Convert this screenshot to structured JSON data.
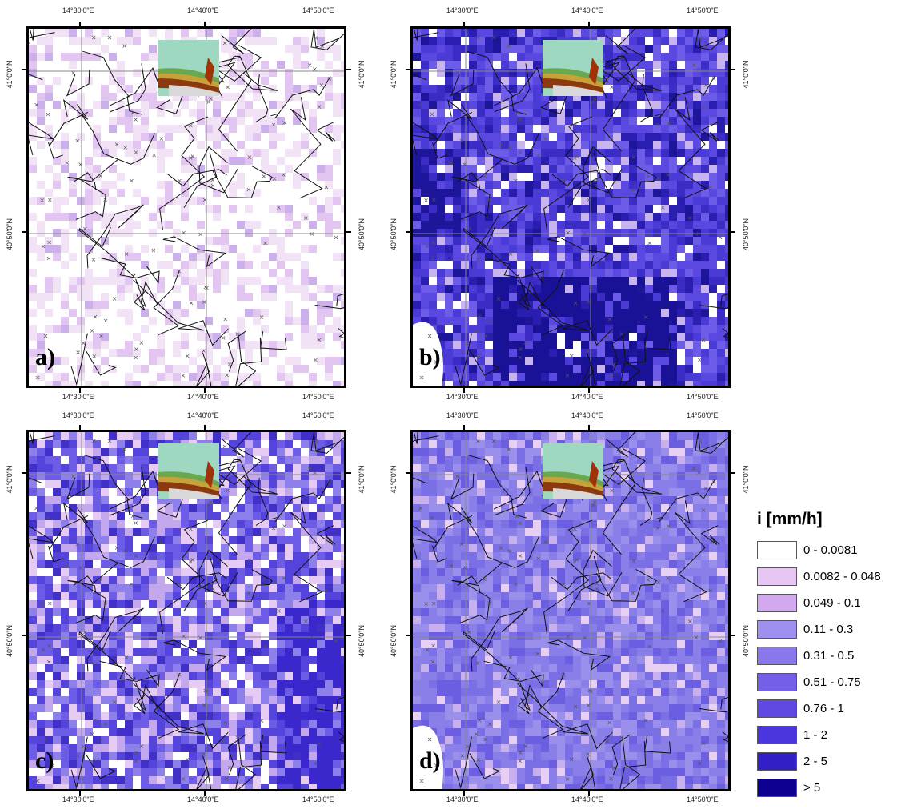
{
  "axes": {
    "lon_labels": [
      "14°30'0\"E",
      "14°40'0\"E",
      "14°50'0\"E"
    ],
    "lat_labels": [
      "41°0'0\"N",
      "40°50'0\"N"
    ]
  },
  "panels": [
    {
      "letter": "a)",
      "palette": [
        "#ffffff",
        "#f1e2f6",
        "#e2c5f0",
        "#cbb0ec"
      ],
      "weights": [
        0.55,
        0.25,
        0.15,
        0.05
      ]
    },
    {
      "letter": "b)",
      "palette": [
        "#6c5ce8",
        "#5a48e0",
        "#4a3ad6",
        "#3a2cc4",
        "#2a1eb0",
        "#1e169a",
        "#ffffff",
        "#c8b4ee"
      ],
      "weights": [
        0.18,
        0.22,
        0.16,
        0.14,
        0.1,
        0.06,
        0.06,
        0.08
      ]
    },
    {
      "letter": "c)",
      "palette": [
        "#ffffff",
        "#e6ccf4",
        "#c4a8ee",
        "#8d80ea",
        "#6d5ce6",
        "#5544dc",
        "#4030c8"
      ],
      "weights": [
        0.12,
        0.12,
        0.14,
        0.14,
        0.18,
        0.18,
        0.12
      ]
    },
    {
      "letter": "d)",
      "palette": [
        "#9a90ec",
        "#8a7fe8",
        "#7a6fe4",
        "#6b5ee0",
        "#c8b0ee",
        "#e8d0f4"
      ],
      "weights": [
        0.2,
        0.28,
        0.22,
        0.16,
        0.08,
        0.06
      ]
    }
  ],
  "legend": {
    "title": "i [mm/h]",
    "classes": [
      {
        "label": "0 - 0.0081",
        "color": "#ffffff"
      },
      {
        "label": "0.0082 - 0.048",
        "color": "#e8c6f4"
      },
      {
        "label": "0.049 - 0.1",
        "color": "#d2a8ee"
      },
      {
        "label": "0.11 - 0.3",
        "color": "#9e90ee"
      },
      {
        "label": "0.31 - 0.5",
        "color": "#8878ec"
      },
      {
        "label": "0.51 - 0.75",
        "color": "#7460e8"
      },
      {
        "label": "0.76 - 1",
        "color": "#5e4ae2"
      },
      {
        "label": "1 - 2",
        "color": "#4a36dc"
      },
      {
        "label": "2 - 5",
        "color": "#3220c6"
      },
      {
        "label": "> 5",
        "color": "#0c0090"
      }
    ]
  }
}
